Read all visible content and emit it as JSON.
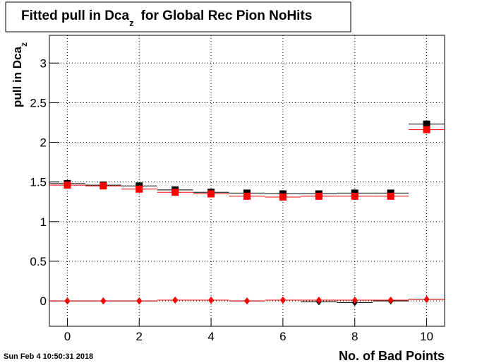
{
  "chart_data": {
    "type": "step-marker",
    "title_parts": [
      "Fitted pull in Dca",
      "z",
      "for Global Rec Pion NoHits"
    ],
    "ylabel_parts": [
      "pull in Dca",
      "z"
    ],
    "xlabel": "No. of Bad Points",
    "footer": "Sun Feb  4 10:50:31 2018",
    "x": [
      0,
      1,
      2,
      3,
      4,
      5,
      6,
      7,
      8,
      9,
      10
    ],
    "series": [
      {
        "color": "#000000",
        "marker": "square",
        "values": [
          1.48,
          1.46,
          1.45,
          1.4,
          1.37,
          1.36,
          1.35,
          1.35,
          1.36,
          1.36,
          2.23
        ]
      },
      {
        "color": "#ff0000",
        "marker": "square",
        "values": [
          1.46,
          1.45,
          1.41,
          1.37,
          1.35,
          1.32,
          1.31,
          1.32,
          1.32,
          1.32,
          2.16
        ]
      },
      {
        "color": "#000000",
        "marker": "diamond",
        "values": [
          0,
          0,
          0,
          0.01,
          0.01,
          0,
          0.01,
          -0.01,
          -0.02,
          0,
          0.02
        ]
      },
      {
        "color": "#ff0000",
        "marker": "diamond",
        "values": [
          0,
          0,
          0,
          0.01,
          0.01,
          0,
          0.01,
          0.01,
          0.01,
          0.01,
          0.02
        ]
      }
    ],
    "xlim": [
      -0.5,
      10.5
    ],
    "ylim": [
      -0.32,
      3.35
    ],
    "xticks": [
      0,
      2,
      4,
      6,
      8,
      10
    ],
    "yticks": [
      0,
      0.5,
      1,
      1.5,
      2,
      2.5,
      3
    ],
    "grid": true
  }
}
